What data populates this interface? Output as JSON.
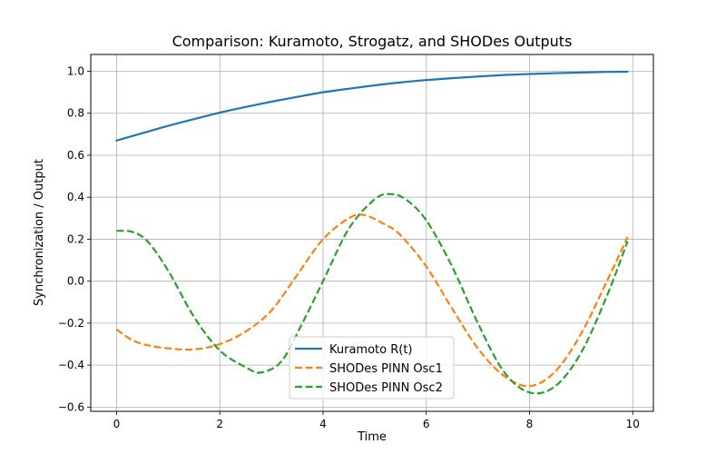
{
  "chart_data": {
    "type": "line",
    "title": "Comparison: Kuramoto, Strogatz, and SHODes Outputs",
    "xlabel": "Time",
    "ylabel": "Synchronization / Output",
    "xlim": [
      -0.5,
      10.4
    ],
    "ylim": [
      -0.62,
      1.08
    ],
    "xticks": [
      0,
      2,
      4,
      6,
      8,
      10
    ],
    "yticks": [
      -0.6,
      -0.4,
      -0.2,
      0.0,
      0.2,
      0.4,
      0.6,
      0.8,
      1.0
    ],
    "ytick_labels": [
      "−0.6",
      "−0.4",
      "−0.2",
      "0.0",
      "0.2",
      "0.4",
      "0.6",
      "0.8",
      "1.0"
    ],
    "grid": true,
    "legend_position": "lower-center",
    "series": [
      {
        "name": "Kuramoto R(t)",
        "color": "#1f77b4",
        "dash": "solid",
        "x": [
          0,
          0.5,
          1,
          1.5,
          2,
          2.5,
          3,
          3.5,
          4,
          4.5,
          5,
          5.5,
          6,
          6.5,
          7,
          7.5,
          8,
          8.5,
          9,
          9.5,
          9.9
        ],
        "y": [
          0.67,
          0.705,
          0.74,
          0.772,
          0.803,
          0.83,
          0.855,
          0.878,
          0.9,
          0.917,
          0.933,
          0.947,
          0.958,
          0.967,
          0.975,
          0.982,
          0.987,
          0.991,
          0.994,
          0.997,
          0.998
        ]
      },
      {
        "name": "SHODes PINN Osc1",
        "color": "#ff7f0e",
        "dash": "dashed",
        "x": [
          0,
          0.3,
          0.6,
          1,
          1.5,
          2,
          2.5,
          3,
          3.5,
          4,
          4.5,
          4.8,
          5.2,
          5.5,
          6,
          6.5,
          7,
          7.5,
          8,
          8.5,
          9,
          9.5,
          9.9
        ],
        "y": [
          -0.23,
          -0.28,
          -0.305,
          -0.32,
          -0.325,
          -0.3,
          -0.24,
          -0.14,
          0.03,
          0.2,
          0.3,
          0.315,
          0.27,
          0.22,
          0.07,
          -0.13,
          -0.32,
          -0.45,
          -0.5,
          -0.43,
          -0.25,
          0.0,
          0.21
        ]
      },
      {
        "name": "SHODes PINN Osc2",
        "color": "#2ca02c",
        "dash": "dashed",
        "x": [
          0,
          0.3,
          0.6,
          1,
          1.5,
          2,
          2.5,
          2.8,
          3.2,
          3.6,
          4,
          4.5,
          5,
          5.3,
          5.6,
          6,
          6.5,
          7,
          7.5,
          8,
          8.5,
          9,
          9.5,
          9.9
        ],
        "y": [
          0.24,
          0.235,
          0.19,
          0.05,
          -0.17,
          -0.33,
          -0.41,
          -0.435,
          -0.38,
          -0.2,
          0.0,
          0.25,
          0.39,
          0.415,
          0.39,
          0.29,
          0.07,
          -0.2,
          -0.43,
          -0.53,
          -0.5,
          -0.34,
          -0.07,
          0.19
        ]
      }
    ]
  }
}
